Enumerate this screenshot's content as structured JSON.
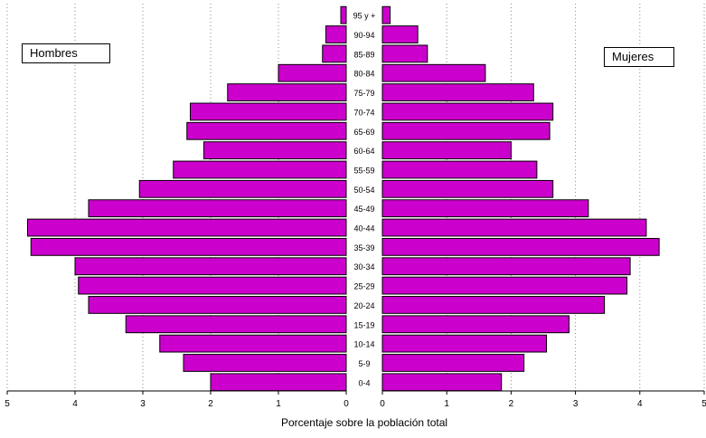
{
  "chart_data": {
    "type": "bar",
    "orientation": "horizontal",
    "subtype": "population-pyramid",
    "categories": [
      "0-4",
      "5-9",
      "10-14",
      "15-19",
      "20-24",
      "25-29",
      "30-34",
      "35-39",
      "40-44",
      "45-49",
      "50-54",
      "55-59",
      "60-64",
      "65-69",
      "70-74",
      "75-79",
      "80-84",
      "85-89",
      "90-94",
      "95 y +"
    ],
    "series": [
      {
        "name": "Hombres",
        "values": [
          2.0,
          2.4,
          2.75,
          3.25,
          3.8,
          3.95,
          4.0,
          4.65,
          4.7,
          3.8,
          3.05,
          2.55,
          2.1,
          2.35,
          2.3,
          1.75,
          1.0,
          0.35,
          0.3,
          0.08
        ],
        "color": "#cc00cc"
      },
      {
        "name": "Mujeres",
        "values": [
          1.85,
          2.2,
          2.55,
          2.9,
          3.45,
          3.8,
          3.85,
          4.3,
          4.1,
          3.2,
          2.65,
          2.4,
          2.0,
          2.6,
          2.65,
          2.35,
          1.6,
          0.7,
          0.55,
          0.12
        ],
        "color": "#cc00cc"
      }
    ],
    "left_ticks": [
      "5",
      "4",
      "3",
      "2",
      "1",
      "0"
    ],
    "right_ticks": [
      "0",
      "1",
      "2",
      "3",
      "4",
      "5"
    ],
    "xlabel": "Porcentaje sobre la población total",
    "xlim": [
      0,
      5
    ],
    "grid": "vertical dotted",
    "legend": {
      "left_label": "Hombres",
      "right_label": "Mujeres",
      "left_placement": "top-left",
      "right_placement": "top-right"
    }
  }
}
